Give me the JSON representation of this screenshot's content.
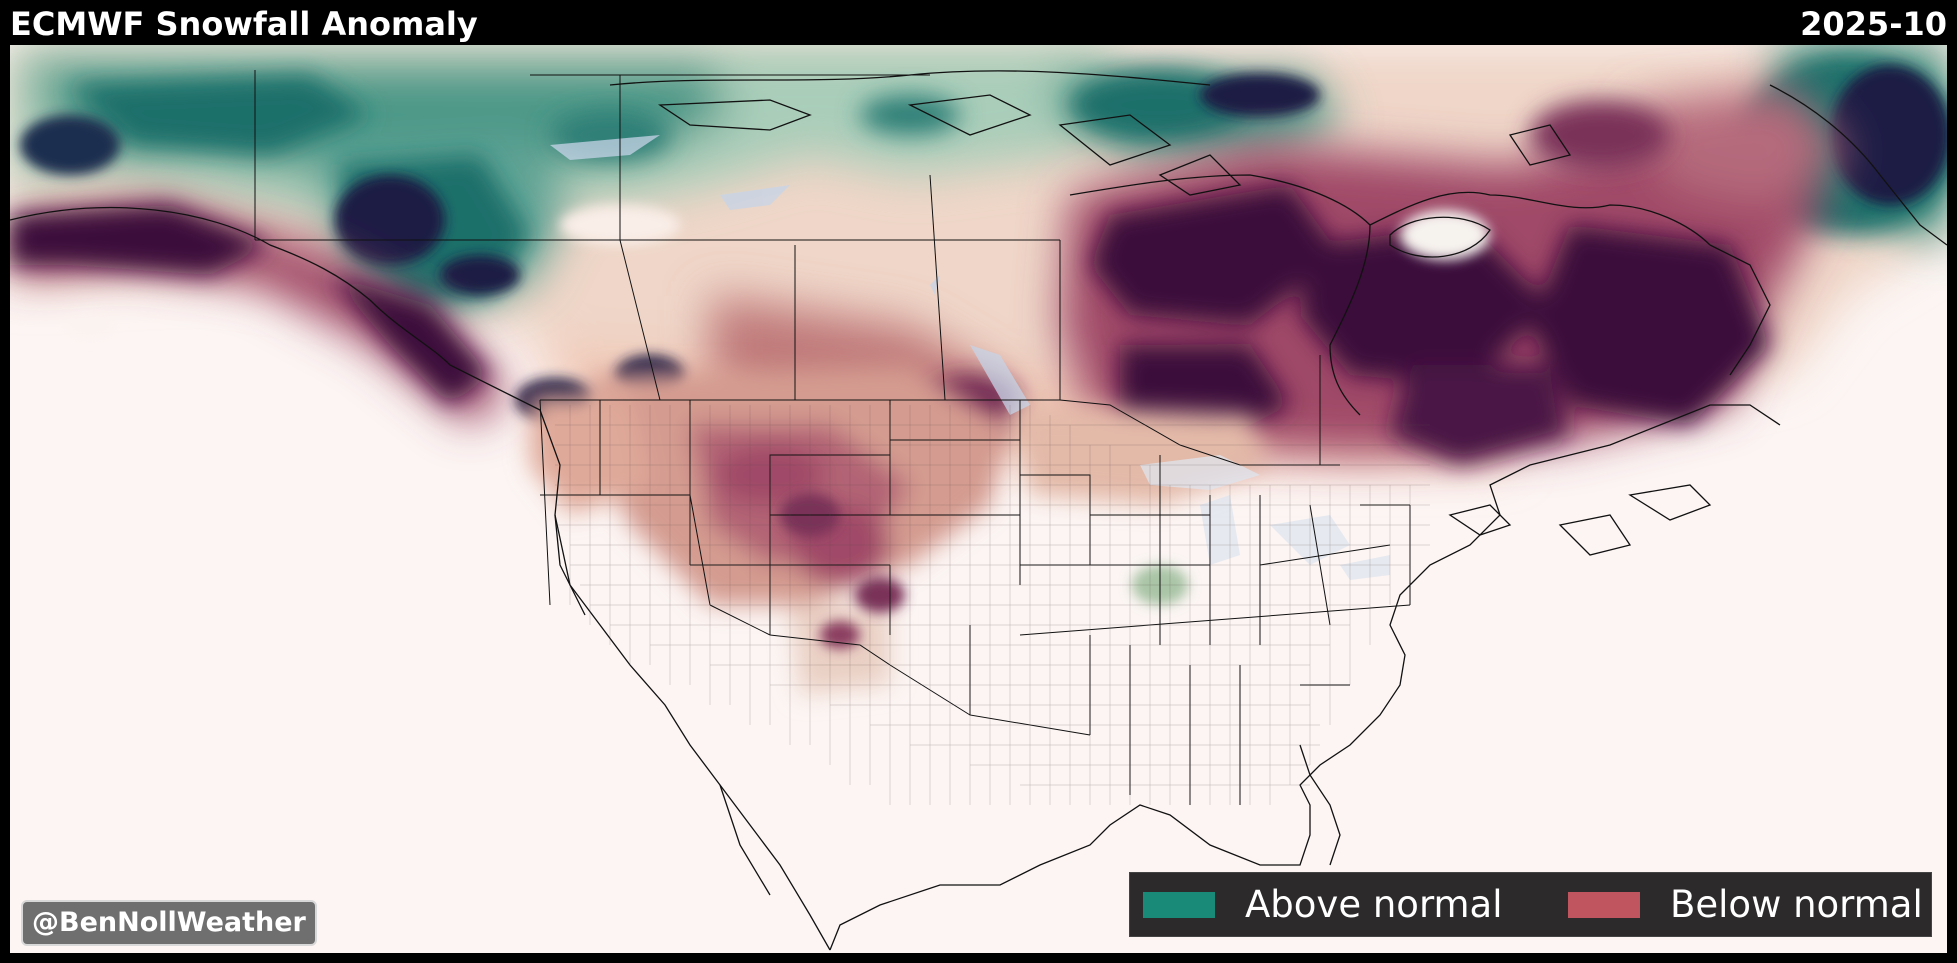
{
  "header": {
    "title": "ECMWF Snowfall Anomaly",
    "date": "2025-10"
  },
  "map": {
    "region": "North America",
    "background_color": "#fcf5f3",
    "colors": {
      "above_strong": "#1b1e44",
      "above_mid": "#1c6f6a",
      "above_light": "#a9cdb9",
      "below_light": "#e9b9a6",
      "below_mid": "#a04a68",
      "below_strong": "#3b0f3a"
    }
  },
  "legend": {
    "items": [
      {
        "label": "Above normal",
        "color": "#1a8a78"
      },
      {
        "label": "Below normal",
        "color": "#c0545f"
      }
    ]
  },
  "credit": {
    "text": "@BenNollWeather"
  }
}
